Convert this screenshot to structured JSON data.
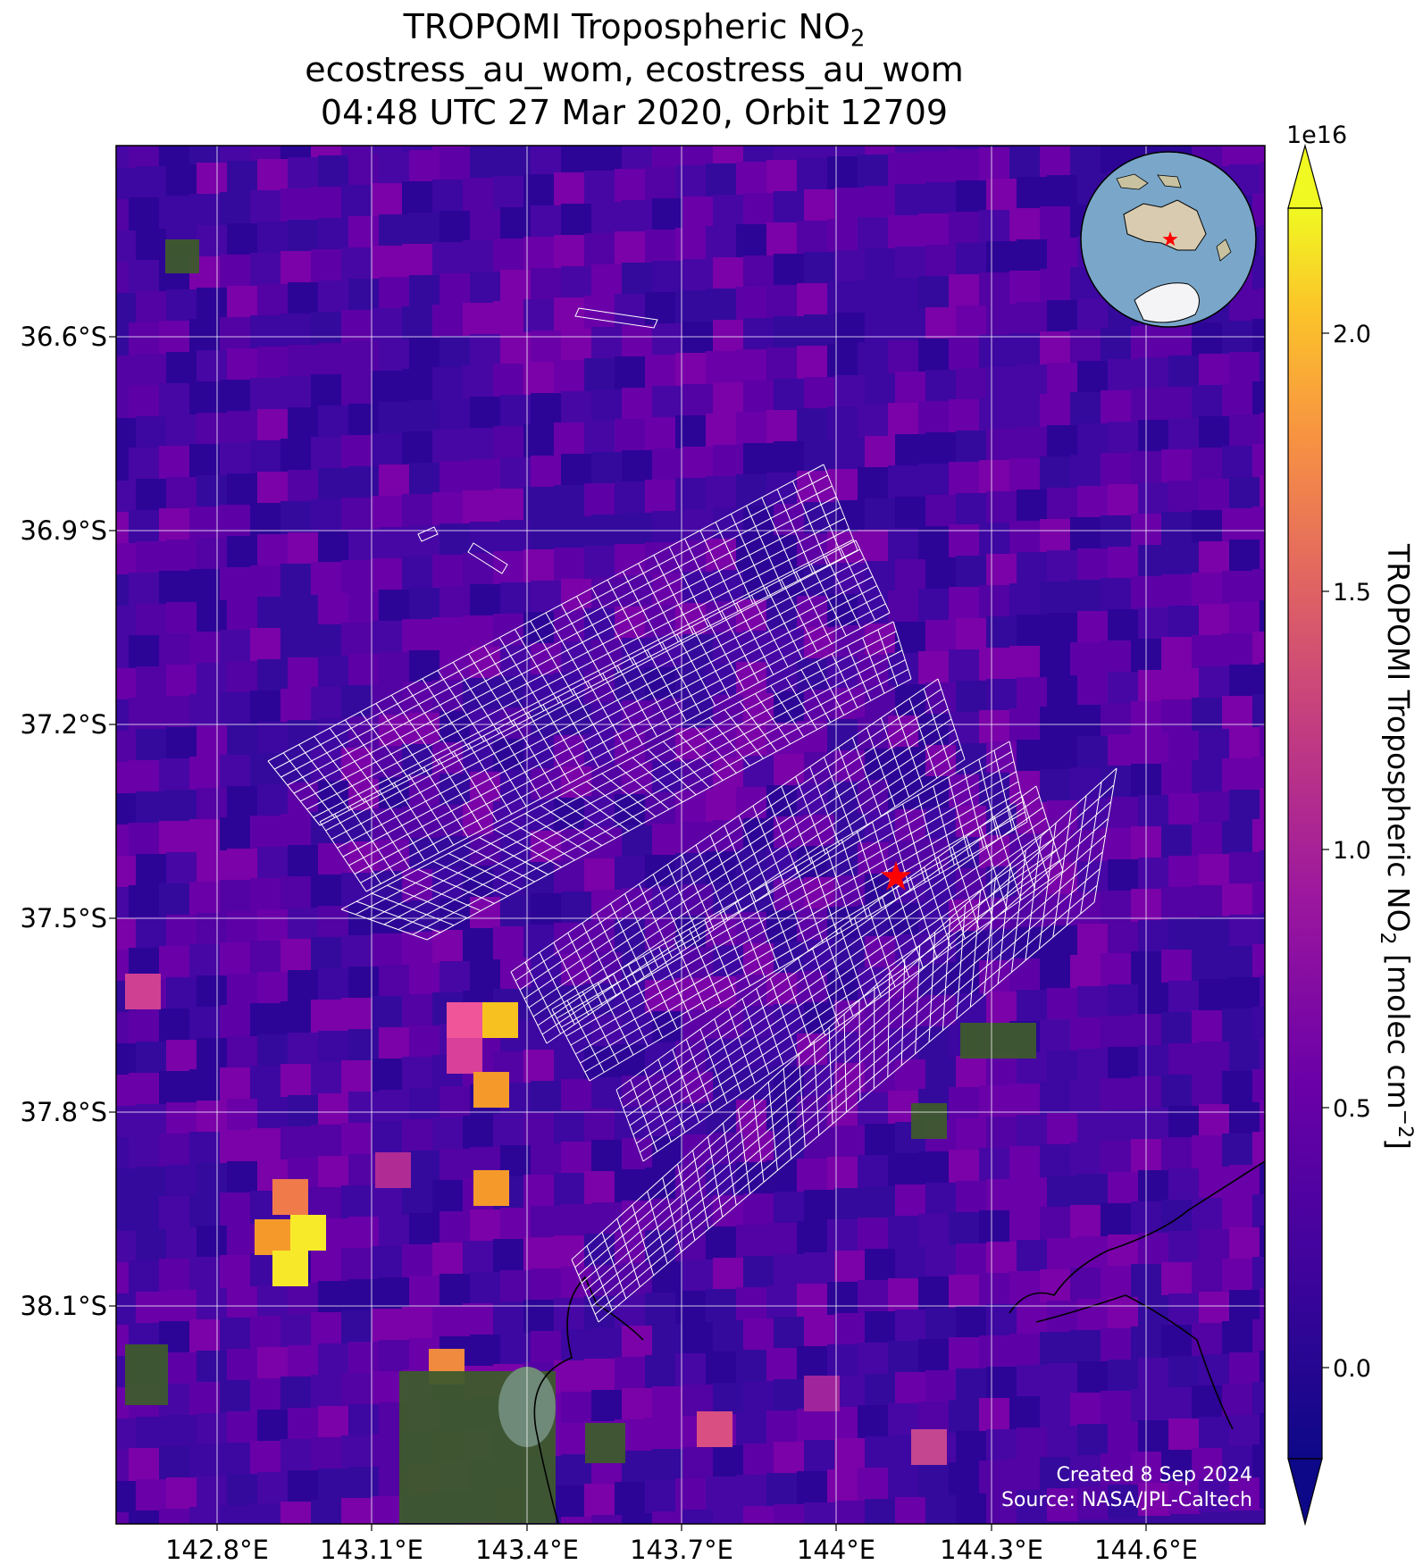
{
  "title": {
    "line1_prefix": "TROPOMI Tropospheric NO",
    "line1_sub": "2",
    "line2": "ecostress_au_wom, ecostress_au_wom",
    "line3": "04:48 UTC 27 Mar 2020, Orbit 12709"
  },
  "map": {
    "lon_ticks": [
      "142.8°E",
      "143.1°E",
      "143.4°E",
      "143.7°E",
      "144°E",
      "144.3°E",
      "144.6°E"
    ],
    "lat_ticks": [
      "36.6°S",
      "36.9°S",
      "37.2°S",
      "37.5°S",
      "37.8°S",
      "38.1°S"
    ],
    "marker": "red-star",
    "grid": true
  },
  "colorbar": {
    "label_prefix": "TROPOMI Tropospheric NO",
    "label_sub": "2",
    "label_unit": " [molec cm",
    "label_sup": "−2",
    "label_end": "]",
    "exponent": "1e16",
    "ticks": [
      "2.0",
      "1.5",
      "1.0",
      "0.5",
      "0.0"
    ],
    "colormap": "plasma",
    "extend": "both"
  },
  "credits": {
    "line1": "Created 8 Sep 2024",
    "line2": "Source: NASA/JPL-Caltech"
  }
}
